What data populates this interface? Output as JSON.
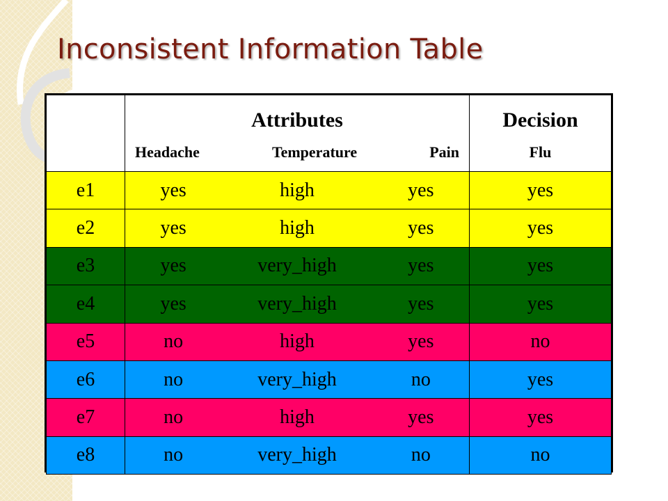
{
  "slide": {
    "title": "Inconsistent Information Table"
  },
  "table": {
    "headers": {
      "attributes": "Attributes",
      "decision": "Decision",
      "attribute_names": [
        "Headache",
        "Temperature",
        "Pain"
      ],
      "decision_name": "Flu"
    },
    "rows": [
      {
        "id": "e1",
        "headache": "yes",
        "temperature": "high",
        "pain": "yes",
        "flu": "yes",
        "color": "#ffff00"
      },
      {
        "id": "e2",
        "headache": "yes",
        "temperature": "high",
        "pain": "yes",
        "flu": "yes",
        "color": "#ffff00"
      },
      {
        "id": "e3",
        "headache": "yes",
        "temperature": "very_high",
        "pain": "yes",
        "flu": "yes",
        "color": "#006400"
      },
      {
        "id": "e4",
        "headache": "yes",
        "temperature": "very_high",
        "pain": "yes",
        "flu": "yes",
        "color": "#006400"
      },
      {
        "id": "e5",
        "headache": "no",
        "temperature": "high",
        "pain": "yes",
        "flu": "no",
        "color": "#ff0066"
      },
      {
        "id": "e6",
        "headache": "no",
        "temperature": "very_high",
        "pain": "no",
        "flu": "yes",
        "color": "#0099ff"
      },
      {
        "id": "e7",
        "headache": "no",
        "temperature": "high",
        "pain": "yes",
        "flu": "yes",
        "color": "#ff0066"
      },
      {
        "id": "e8",
        "headache": "no",
        "temperature": "very_high",
        "pain": "no",
        "flu": "no",
        "color": "#0099ff"
      }
    ]
  }
}
